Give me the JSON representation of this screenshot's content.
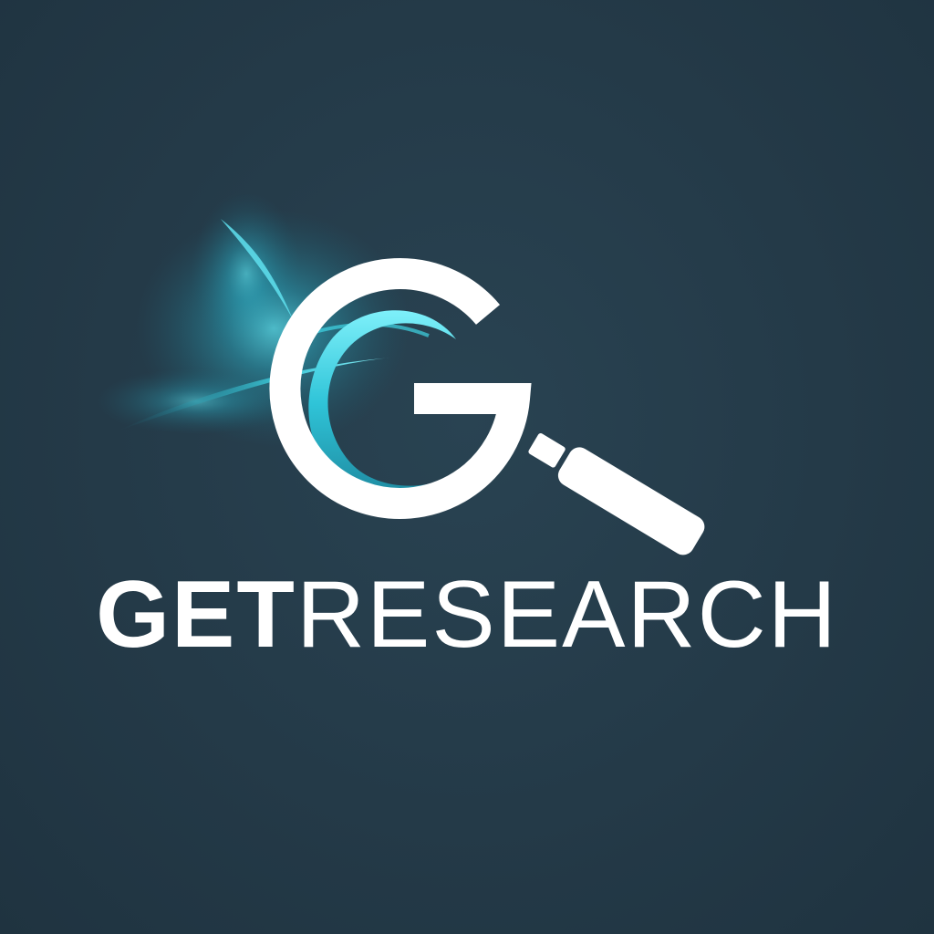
{
  "brand": {
    "name_strong": "GET",
    "name_light": "RESEARCH"
  },
  "colors": {
    "background": "#243a48",
    "mark": "#ffffff",
    "accent": "#3fd6e6"
  },
  "icons": {
    "logo": "magnifying-glass-g-icon"
  }
}
